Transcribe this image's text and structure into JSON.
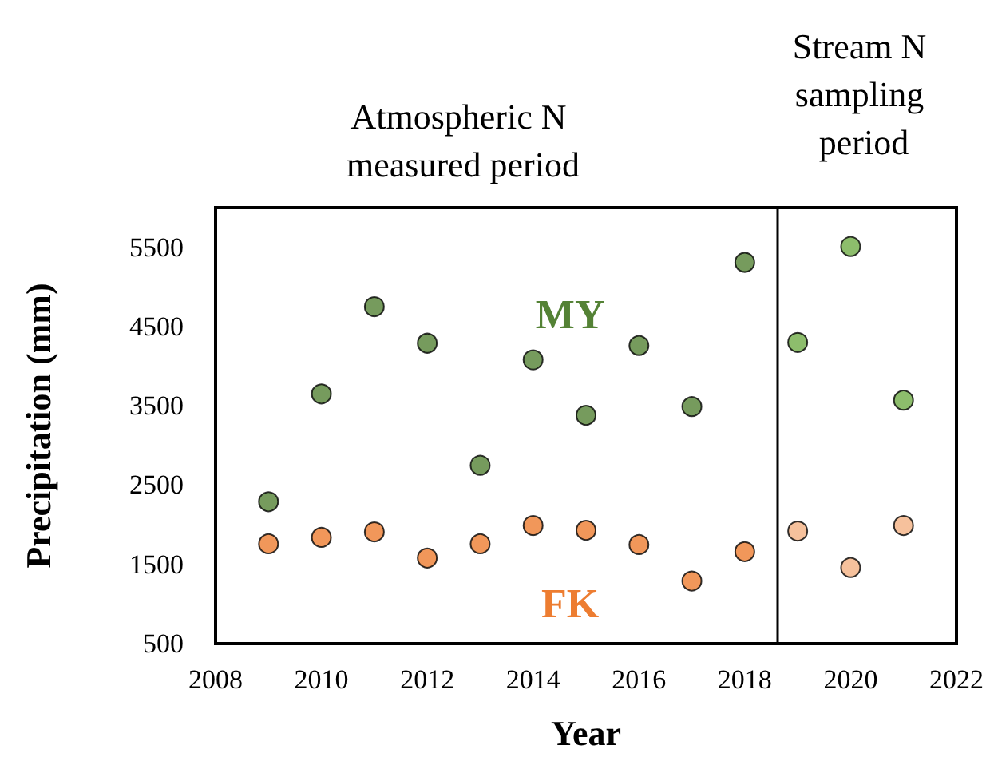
{
  "chart_data": {
    "type": "scatter",
    "xlabel": "Year",
    "ylabel": "Precipitation (mm)",
    "annotations": [
      "Atmospheric N measured period",
      "Stream N sampling period"
    ],
    "series": [
      {
        "name": "MY",
        "color": "#548235",
        "x": [
          2009,
          2010,
          2011,
          2012,
          2013,
          2014,
          2015,
          2016,
          2017,
          2018
        ],
        "values": [
          2290,
          3650,
          4750,
          4290,
          2750,
          4080,
          3380,
          4260,
          3490,
          5310
        ]
      },
      {
        "color": "#70ad47",
        "x": [
          2019,
          2020,
          2021
        ],
        "values": [
          4300,
          5510,
          3570
        ]
      },
      {
        "name": "FK",
        "color": "#ed7d31",
        "x": [
          2009,
          2010,
          2011,
          2012,
          2013,
          2014,
          2015,
          2016,
          2017,
          2018
        ],
        "values": [
          1760,
          1840,
          1910,
          1580,
          1760,
          1990,
          1930,
          1750,
          1290,
          1660
        ]
      },
      {
        "color": "#f4b183",
        "x": [
          2019,
          2020,
          2021
        ],
        "values": [
          1920,
          1460,
          1990
        ]
      }
    ],
    "xlim": [
      2008,
      2022
    ],
    "xticks": [
      2008,
      2010,
      2012,
      2014,
      2016,
      2018,
      2020,
      2022
    ],
    "ylim": [
      500,
      6000
    ],
    "yticks": [
      500,
      1500,
      2500,
      3500,
      4500,
      5500
    ],
    "ref_lines": [
      {
        "axis": "x",
        "value": 2018.6,
        "color": "#000000"
      }
    ],
    "marker": "circle",
    "grid": false,
    "legend": false
  }
}
